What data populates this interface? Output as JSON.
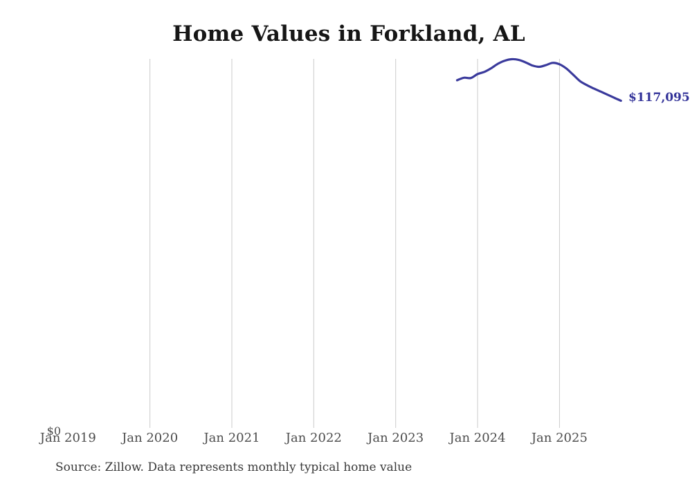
{
  "title": "Home Values in Forkland, AL",
  "source": "Source: Zillow. Data represents monthly typical home value",
  "colors": {
    "line": "#3A3A9C",
    "end_label": "#333399",
    "gridline": "#CBCBCB",
    "axis_label": "#4C4C4C",
    "title": "#161616",
    "source": "#383838",
    "background": "#FFFFFF"
  },
  "axis": {
    "x_ticks": [
      "Jan 2019",
      "Jan 2020",
      "Jan 2021",
      "Jan 2022",
      "Jan 2023",
      "Jan 2024",
      "Jan 2025"
    ],
    "y_zero_label": "$0"
  },
  "chart_data": {
    "type": "line",
    "title": "Home Values in Forkland, AL",
    "series_name": "Monthly typical home value",
    "x": [
      "Oct 2023",
      "Nov 2023",
      "Dec 2023",
      "Jan 2024",
      "Feb 2024",
      "Mar 2024",
      "Apr 2024",
      "May 2024",
      "Jun 2024",
      "Jul 2024",
      "Aug 2024",
      "Sep 2024",
      "Oct 2024",
      "Nov 2024",
      "Dec 2024",
      "Jan 2025",
      "Feb 2025",
      "Mar 2025",
      "Apr 2025",
      "May 2025",
      "Jun 2025",
      "Jul 2025",
      "Aug 2025",
      "Sep 2025",
      "Oct 2025"
    ],
    "values": [
      124400,
      125300,
      125200,
      126600,
      127400,
      128700,
      130300,
      131400,
      131900,
      131700,
      130800,
      129700,
      129200,
      129800,
      130600,
      130100,
      128600,
      126400,
      124100,
      122700,
      121500,
      120400,
      119300,
      118200,
      117095
    ],
    "end_label": "$117,095",
    "xlabel": "",
    "ylabel": "",
    "ylim": [
      0,
      132500
    ],
    "x_tick_labels": [
      "Jan 2019",
      "Jan 2020",
      "Jan 2021",
      "Jan 2022",
      "Jan 2023",
      "Jan 2024",
      "Jan 2025"
    ],
    "y_tick_labels": [
      "$0"
    ],
    "grid": "vertical-yearly, no gridline at Jan 2019",
    "legend": "none"
  }
}
